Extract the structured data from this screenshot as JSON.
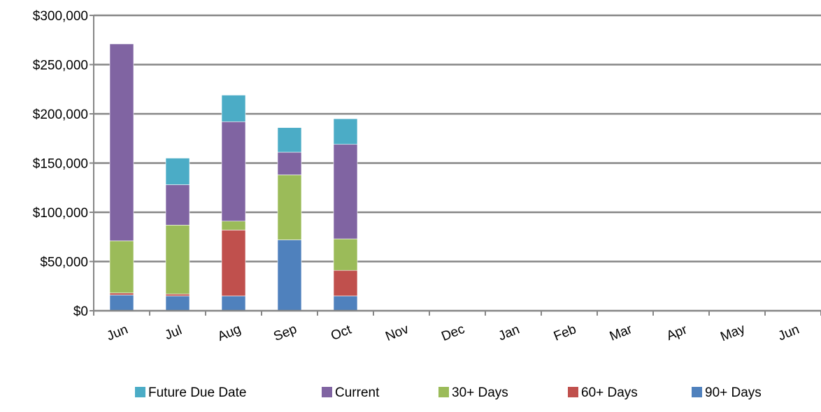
{
  "chart_data": {
    "type": "bar",
    "stacked": true,
    "categories": [
      "Jun",
      "Jul",
      "Aug",
      "Sep",
      "Oct",
      "Nov",
      "Dec",
      "Jan",
      "Feb",
      "Mar",
      "Apr",
      "May",
      "Jun"
    ],
    "ylim": [
      0,
      300000
    ],
    "yticks": [
      0,
      50000,
      100000,
      150000,
      200000,
      250000,
      300000
    ],
    "ytick_labels": [
      "$0",
      "$50,000",
      "$100,000",
      "$150,000",
      "$200,000",
      "$250,000",
      "$300,000"
    ],
    "grid": true,
    "legend_position": "bottom",
    "series": [
      {
        "name": "90+ Days",
        "color": "#4F81BD",
        "values": [
          16000,
          15000,
          15000,
          72000,
          15000,
          0,
          0,
          0,
          0,
          0,
          0,
          0,
          0
        ]
      },
      {
        "name": "60+ Days",
        "color": "#C0504D",
        "values": [
          2000,
          2000,
          67000,
          0,
          26000,
          0,
          0,
          0,
          0,
          0,
          0,
          0,
          0
        ]
      },
      {
        "name": "30+ Days",
        "color": "#9BBB59",
        "values": [
          53000,
          70000,
          9000,
          66000,
          32000,
          0,
          0,
          0,
          0,
          0,
          0,
          0,
          0
        ]
      },
      {
        "name": "Current",
        "color": "#8064A2",
        "values": [
          200000,
          41000,
          101000,
          23000,
          96000,
          0,
          0,
          0,
          0,
          0,
          0,
          0,
          0
        ]
      },
      {
        "name": "Future Due Date",
        "color": "#4BACC6",
        "values": [
          0,
          27000,
          27000,
          25000,
          26000,
          0,
          0,
          0,
          0,
          0,
          0,
          0,
          0
        ]
      }
    ],
    "legend_order": [
      "Future Due Date",
      "Current",
      "30+ Days",
      "60+ Days",
      "90+ Days"
    ]
  }
}
